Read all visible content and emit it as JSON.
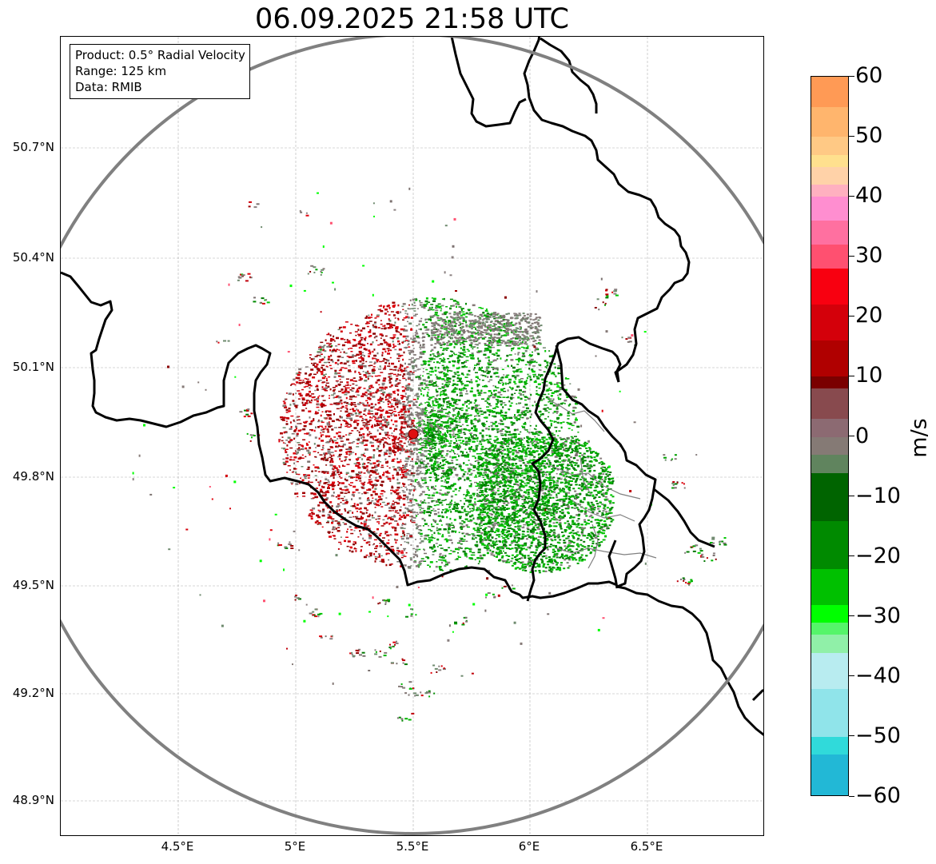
{
  "title": "06.09.2025 21:58 UTC",
  "info": {
    "product": "Product: 0.5° Radial Velocity",
    "range": "Range: 125 km",
    "source": "Data: RMIB"
  },
  "axes": {
    "lat_labels": [
      "50.7°N",
      "50.4°N",
      "50.1°N",
      "49.8°N",
      "49.5°N",
      "49.2°N",
      "48.9°N"
    ],
    "lon_labels": [
      "4.5°E",
      "5°E",
      "5.5°E",
      "6°E",
      "6.5°E"
    ]
  },
  "colorbar": {
    "unit": "m/s",
    "labels": [
      "60",
      "50",
      "40",
      "30",
      "20",
      "10",
      "0",
      "−10",
      "−20",
      "−30",
      "−40",
      "−50",
      "−60"
    ],
    "min": -60,
    "max": 60,
    "stops": [
      {
        "v": 60,
        "c": "#ff9a55"
      },
      {
        "v": 55,
        "c": "#ffb56d"
      },
      {
        "v": 50,
        "c": "#ffc985"
      },
      {
        "v": 47,
        "c": "#ffe08e"
      },
      {
        "v": 45,
        "c": "#ffd2a8"
      },
      {
        "v": 42,
        "c": "#ffb0c0"
      },
      {
        "v": 40,
        "c": "#ff8ed0"
      },
      {
        "v": 36,
        "c": "#ff70a0"
      },
      {
        "v": 32,
        "c": "#ff5070"
      },
      {
        "v": 28,
        "c": "#f80010"
      },
      {
        "v": 22,
        "c": "#d4000a"
      },
      {
        "v": 16,
        "c": "#b00000"
      },
      {
        "v": 10,
        "c": "#7a0000"
      },
      {
        "v": 8,
        "c": "#884a4e"
      },
      {
        "v": 3,
        "c": "#8c6a72"
      },
      {
        "v": 0,
        "c": "#857a75"
      },
      {
        "v": -3,
        "c": "#60845e"
      },
      {
        "v": -6,
        "c": "#006400"
      },
      {
        "v": -14,
        "c": "#008a00"
      },
      {
        "v": -22,
        "c": "#00c000"
      },
      {
        "v": -28,
        "c": "#00ff00"
      },
      {
        "v": -31,
        "c": "#55f56a"
      },
      {
        "v": -33,
        "c": "#90f0a8"
      },
      {
        "v": -36,
        "c": "#b8ecf0"
      },
      {
        "v": -42,
        "c": "#90e4ea"
      },
      {
        "v": -50,
        "c": "#30dada"
      },
      {
        "v": -53,
        "c": "#22b8d6"
      },
      {
        "v": -60,
        "c": "#2075c0"
      }
    ]
  },
  "map": {
    "radar_site": {
      "lon": 5.505,
      "lat": 49.914
    },
    "colors": {
      "range_ring": "#808080",
      "borders": "#000000",
      "admin_lines": "#808080",
      "grid": "#b0b0b0",
      "site_marker": "#e01010",
      "approach_red": "#c0000a",
      "receding_green": "#00a000",
      "zero_gray": "#867a77"
    }
  }
}
